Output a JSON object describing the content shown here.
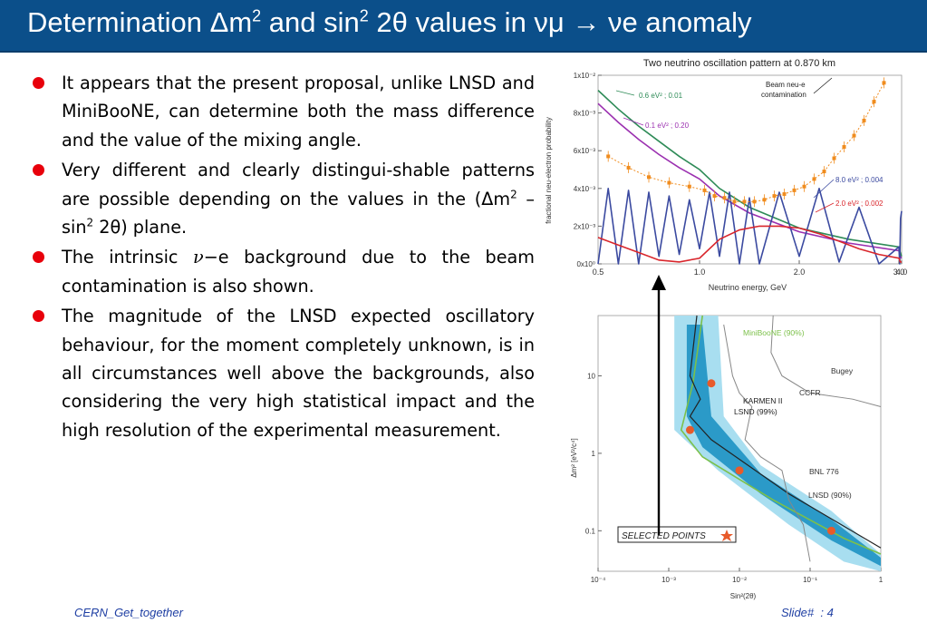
{
  "slide": {
    "title_prefix": "Determination ",
    "title_delta": "Δ",
    "title_m": "m",
    "title_sq1": "2",
    "title_and": " and  sin",
    "title_sq2": "2",
    "title_rest": " 2θ values in νμ → νe anomaly",
    "footer_left": "CERN_Get_together",
    "footer_right": "Slide#  : 4"
  },
  "bullets": [
    {
      "text": "It appears that the present proposal, unlike LNSD and MiniBooNE, can determine both the mass difference and the value of the mixing angle."
    },
    {
      "text": "Very different and clearly distingui-shable patterns are possible depending on the values in the ("
    },
    {
      "text_a": "The intrinsic",
      "nu": "ν",
      "text_b": "−e background due to the beam contamination is also shown."
    },
    {
      "text": "The magnitude of the LNSD expected oscillatory behaviour, for the moment completely unknown, is in all circumstances well above the backgrounds, also considering the very high statistical impact and the high resolution of the experimental measurement."
    }
  ],
  "bullet2_parts": {
    "delta_m": "Δm",
    "sq": "2",
    "dash_sin": " – sin",
    "sq2": "2",
    "two_theta": " 2θ",
    "end": ") plane."
  },
  "colors": {
    "title_bar": "#0b4f8a",
    "bullet": "#e8000b",
    "footer": "#1f3fa3"
  },
  "chart_data": [
    {
      "type": "line",
      "title": "Two neutrino oscillation pattern at 0.870 km",
      "xlabel": "Neutrino energy, GeV",
      "ylabel": "fractional neu-electron probability",
      "xlim": [
        0.5,
        4.0
      ],
      "ylim": [
        0,
        0.01
      ],
      "x_ticks": [
        "0.5",
        "1.0",
        "2.0",
        "3.0",
        "4.0"
      ],
      "y_ticks": [
        "0x10⁰",
        "2x10⁻³",
        "4x10⁻³",
        "6x10⁻³",
        "8x10⁻³",
        "1x10⁻²"
      ],
      "series": [
        {
          "name": "0.6 eV² ; 0.01",
          "color": "#2e8b57",
          "x": [
            0.5,
            0.6,
            0.7,
            0.8,
            0.9,
            1.0,
            1.2,
            1.5,
            2.0,
            2.5,
            3.0,
            3.5,
            4.0
          ],
          "y": [
            0.0092,
            0.0082,
            0.0073,
            0.0065,
            0.0057,
            0.005,
            0.004,
            0.003,
            0.0019,
            0.0013,
            0.0009,
            0.0006,
            0.0004
          ]
        },
        {
          "name": "0.1 eV² ; 0.20",
          "color": "#9b30b0",
          "x": [
            0.5,
            0.6,
            0.7,
            0.8,
            0.9,
            1.0,
            1.2,
            1.5,
            2.0,
            2.5,
            3.0,
            3.5,
            4.0
          ],
          "y": [
            0.0085,
            0.0075,
            0.0066,
            0.0058,
            0.0051,
            0.0045,
            0.0036,
            0.0027,
            0.0017,
            0.0011,
            0.0007,
            0.0004,
            0.0003
          ]
        },
        {
          "name": "8.0 eV² ; 0.004",
          "color": "#3b4aa0",
          "x": [
            0.5,
            0.55,
            0.6,
            0.65,
            0.7,
            0.75,
            0.8,
            0.85,
            0.9,
            0.95,
            1.0,
            1.1,
            1.2,
            1.3,
            1.4,
            1.5,
            1.6,
            1.8,
            2.0,
            2.2,
            2.4,
            2.6,
            2.8,
            3.0,
            3.3,
            3.6,
            4.0
          ],
          "y": [
            0.0,
            0.004,
            0.0,
            0.0039,
            0.0,
            0.0038,
            0.0004,
            0.0036,
            0.0005,
            0.0034,
            0.0008,
            0.0038,
            0.0004,
            0.0038,
            0.0,
            0.0035,
            0.0,
            0.0038,
            0.0004,
            0.004,
            0.0001,
            0.003,
            0.0,
            0.0009,
            0.0,
            0.0024,
            0.0028
          ]
        },
        {
          "name": "2.0 eV² ; 0.002",
          "color": "#d9262c",
          "x": [
            0.5,
            0.6,
            0.7,
            0.8,
            0.9,
            1.0,
            1.2,
            1.4,
            1.6,
            1.8,
            2.0,
            2.2,
            2.4,
            2.6,
            2.8,
            3.0,
            3.5,
            4.0
          ],
          "y": [
            0.0014,
            0.001,
            0.0006,
            0.0002,
            0.0001,
            0.0003,
            0.0013,
            0.0018,
            0.002,
            0.002,
            0.0019,
            0.0016,
            0.0012,
            0.0008,
            0.0005,
            0.0003,
            0.0001,
            0.0001
          ]
        },
        {
          "name": "Beam neu-e contamination",
          "color": "#f08c1e",
          "x": [
            0.55,
            0.65,
            0.75,
            0.85,
            0.95,
            1.05,
            1.15,
            1.25,
            1.35,
            1.45,
            1.55,
            1.65,
            1.75,
            1.85,
            1.95,
            2.05,
            2.15,
            2.25,
            2.35,
            2.45,
            2.55,
            2.65,
            2.75,
            2.85
          ],
          "y": [
            0.0057,
            0.0051,
            0.0046,
            0.0043,
            0.0041,
            0.0039,
            0.0036,
            0.0035,
            0.0033,
            0.0033,
            0.0033,
            0.0034,
            0.0036,
            0.0037,
            0.0039,
            0.0041,
            0.0045,
            0.0049,
            0.0056,
            0.0062,
            0.0068,
            0.0076,
            0.0086,
            0.0096
          ]
        }
      ]
    },
    {
      "type": "line",
      "xlabel": "Sin²(2θ)",
      "ylabel": "Δm² [eV²/c⁴]",
      "x_log": true,
      "y_log": true,
      "xlim": [
        0.0001,
        1
      ],
      "ylim": [
        0.03,
        60
      ],
      "x_ticks": [
        "10⁻⁴",
        "10⁻³",
        "10⁻²",
        "10⁻¹",
        "1"
      ],
      "y_ticks": [
        "10",
        "1",
        "0.1"
      ],
      "labels": [
        "MiniBooNE (90%)",
        "KARMEN II",
        "LSND (99%)",
        "Bugey",
        "CCFR",
        "BNL 776",
        "LNSD (90%)"
      ],
      "legend_box": "SELECTED POINTS",
      "selected_points": [
        {
          "x": 0.004,
          "y": 8.0
        },
        {
          "x": 0.002,
          "y": 2.0
        },
        {
          "x": 0.01,
          "y": 0.6
        },
        {
          "x": 0.2,
          "y": 0.1
        }
      ]
    }
  ]
}
